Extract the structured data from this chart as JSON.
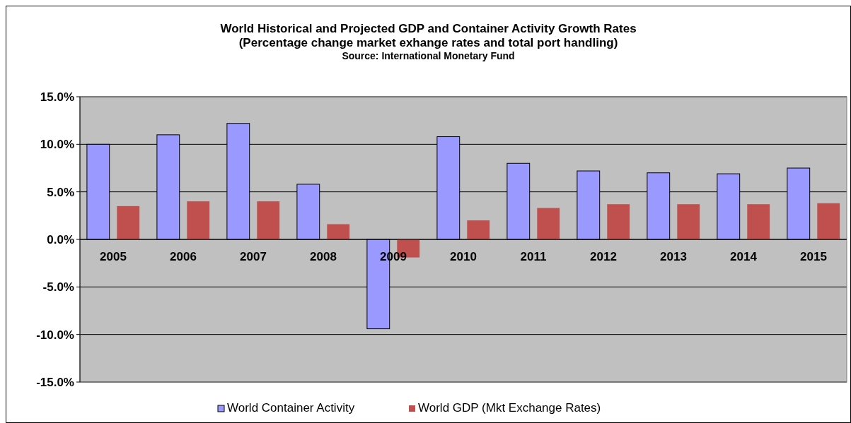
{
  "chart_data": {
    "type": "bar",
    "title": "World Historical and Projected GDP and Container Activity Growth Rates",
    "subtitle": "(Percentage change market exhange rates and total port handling)",
    "annotations": [
      "Source: International Monetary Fund"
    ],
    "categories": [
      "2005",
      "2006",
      "2007",
      "2008",
      "2009",
      "2010",
      "2011",
      "2012",
      "2013",
      "2014",
      "2015"
    ],
    "series": [
      {
        "name": "World Container Activity",
        "color": "#9999ff",
        "values": [
          10.0,
          11.0,
          12.2,
          5.8,
          -9.4,
          10.8,
          8.0,
          7.2,
          7.0,
          6.9,
          7.5
        ]
      },
      {
        "name": "World GDP (Mkt Exchange Rates)",
        "color": "#c0504d",
        "values": [
          3.5,
          4.0,
          4.0,
          1.6,
          -1.9,
          2.0,
          3.3,
          3.7,
          3.7,
          3.7,
          3.8
        ]
      }
    ],
    "ylim": [
      -15,
      15
    ],
    "yticks": [
      {
        "value": -15,
        "label": "-15.0%"
      },
      {
        "value": -10,
        "label": "-10.0%"
      },
      {
        "value": -5,
        "label": "-5.0%"
      },
      {
        "value": 0,
        "label": "0.0%"
      },
      {
        "value": 5,
        "label": "5.0%"
      },
      {
        "value": 10,
        "label": "10.0%"
      },
      {
        "value": 15,
        "label": "15.0%"
      }
    ],
    "grid": "y",
    "legend": "bottom"
  }
}
